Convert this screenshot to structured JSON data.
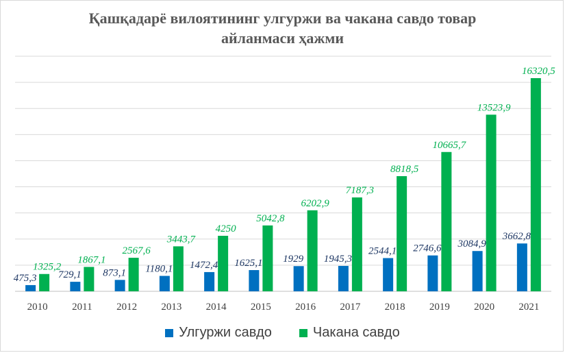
{
  "chart_data": {
    "type": "bar",
    "title": "Қашқадарё вилоятининг улгуржи ва чакана савдо товар\nайланмаси ҳажми",
    "categories": [
      "2010",
      "2011",
      "2012",
      "2013",
      "2014",
      "2015",
      "2016",
      "2017",
      "2018",
      "2019",
      "2020",
      "2021"
    ],
    "series": [
      {
        "name": "Улгуржи савдо",
        "color": "#0070c0",
        "label_color": "#1f3864",
        "values": [
          475.3,
          729.1,
          873.1,
          1180.1,
          1472.4,
          1625.1,
          1929,
          1945.3,
          2544.1,
          2746.6,
          3084.9,
          3662.8
        ],
        "labels": [
          "475,3",
          "729,1",
          "873,1",
          "1180,1",
          "1472,4",
          "1625,1",
          "1929",
          "1945,3",
          "2544,1",
          "2746,6",
          "3084,9",
          "3662,8"
        ]
      },
      {
        "name": "Чакана савдо",
        "color": "#00b050",
        "label_color": "#00b050",
        "values": [
          1325.2,
          1867.1,
          2567.6,
          3443.7,
          4250,
          5042.8,
          6202.9,
          7187.3,
          8818.5,
          10665.7,
          13523.9,
          16320.5
        ],
        "labels": [
          "1325,2",
          "1867,1",
          "2567,6",
          "3443,7",
          "4250",
          "5042,8",
          "6202,9",
          "7187,3",
          "8818,5",
          "10665,7",
          "13523,9",
          "16320,5"
        ]
      }
    ],
    "ylim": [
      0,
      18000
    ],
    "grid": true,
    "legend_position": "bottom"
  }
}
